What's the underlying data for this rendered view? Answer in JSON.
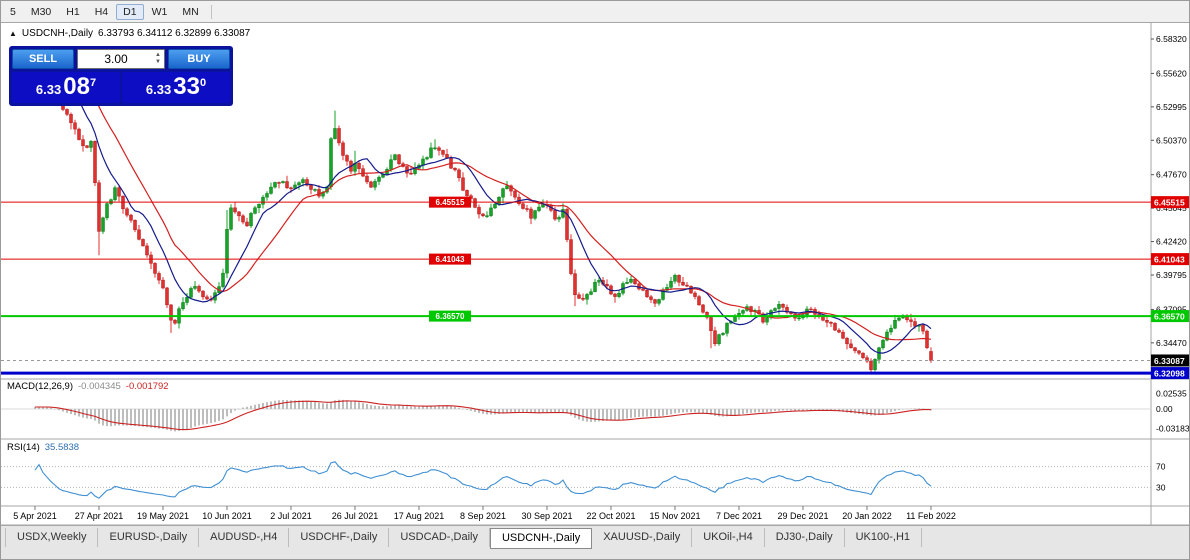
{
  "toolbar": {
    "timeframes": [
      "5",
      "M30",
      "H1",
      "H4",
      "D1",
      "W1",
      "MN"
    ]
  },
  "icons": {
    "collapse": "▲",
    "spin_up": "▲",
    "spin_down": "▼"
  },
  "chart_header": {
    "symbol_title": "USDCNH-,Daily",
    "ohlc_text": "6.33793 6.34112 6.32899 6.33087"
  },
  "trade_panel": {
    "sell_label": "SELL",
    "buy_label": "BUY",
    "volume": "3.00",
    "sell_price_base": "6.33",
    "sell_price_big": "08",
    "sell_price_sup": "7",
    "buy_price_base": "6.33",
    "buy_price_big": "33",
    "buy_price_sup": "0"
  },
  "indicator_labels": {
    "macd_name": "MACD(12,26,9)",
    "macd_main": "-0.004345",
    "macd_signal": "-0.001792",
    "rsi_name": "RSI(14)",
    "rsi_value": "35.5838"
  },
  "tabs": [
    "USDX,Weekly",
    "EURUSD-,Daily",
    "AUDUSD-,H4",
    "USDCHF-,Daily",
    "USDCAD-,Daily",
    "USDCNH-,Daily",
    "XAUUSD-,Daily",
    "UKOil-,H4",
    "DJ30-,Daily",
    "UK100-,H1"
  ],
  "chart_data": {
    "type": "candlestick",
    "symbol": "USDCNH-",
    "timeframe": "Daily",
    "ohlc_current": {
      "open": 6.33793,
      "high": 6.34112,
      "low": 6.32899,
      "close": 6.33087
    },
    "price_axis_ticks": [
      "6.58320",
      "6.55620",
      "6.52995",
      "6.50370",
      "6.47670",
      "6.45045",
      "6.42420",
      "6.39795",
      "6.37095",
      "6.34470"
    ],
    "date_labels": [
      "5 Apr 2021",
      "27 Apr 2021",
      "19 May 2021",
      "10 Jun 2021",
      "2 Jul 2021",
      "26 Jul 2021",
      "17 Aug 2021",
      "8 Sep 2021",
      "30 Sep 2021",
      "22 Oct 2021",
      "15 Nov 2021",
      "7 Dec 2021",
      "29 Dec 2021",
      "20 Jan 2022",
      "11 Feb 2022"
    ],
    "bars_per_label": 16,
    "levels": [
      {
        "price": 6.45515,
        "label": "6.45515",
        "color": "#e00000",
        "width": 1,
        "mid_label": true
      },
      {
        "price": 6.41043,
        "label": "6.41043",
        "color": "#e00000",
        "width": 1,
        "mid_label": true
      },
      {
        "price": 6.3657,
        "label": "6.36570",
        "color": "#00c800",
        "width": 2,
        "mid_label": true
      },
      {
        "price": 6.33087,
        "label": "6.33087",
        "color": "#000000",
        "width": 1,
        "style": "current"
      },
      {
        "price": 6.32098,
        "label": "6.32098",
        "color": "#0000cc",
        "width": 3
      }
    ],
    "price_keypoints": [
      [
        0,
        6.568
      ],
      [
        1,
        6.574
      ],
      [
        3,
        6.56
      ],
      [
        5,
        6.545
      ],
      [
        7,
        6.53
      ],
      [
        9,
        6.516
      ],
      [
        11,
        6.504
      ],
      [
        13,
        6.496
      ],
      [
        14,
        6.503
      ],
      [
        15,
        6.47
      ],
      [
        16,
        6.432
      ],
      [
        17,
        6.445
      ],
      [
        19,
        6.458
      ],
      [
        20,
        6.464
      ],
      [
        22,
        6.452
      ],
      [
        24,
        6.441
      ],
      [
        26,
        6.428
      ],
      [
        28,
        6.414
      ],
      [
        30,
        6.4
      ],
      [
        32,
        6.386
      ],
      [
        34,
        6.363
      ],
      [
        35,
        6.359
      ],
      [
        36,
        6.371
      ],
      [
        38,
        6.383
      ],
      [
        40,
        6.391
      ],
      [
        42,
        6.383
      ],
      [
        44,
        6.376
      ],
      [
        46,
        6.388
      ],
      [
        47,
        6.401
      ],
      [
        48,
        6.432
      ],
      [
        49,
        6.452
      ],
      [
        51,
        6.444
      ],
      [
        53,
        6.438
      ],
      [
        55,
        6.45
      ],
      [
        57,
        6.459
      ],
      [
        59,
        6.466
      ],
      [
        61,
        6.472
      ],
      [
        63,
        6.466
      ],
      [
        65,
        6.469
      ],
      [
        67,
        6.474
      ],
      [
        69,
        6.467
      ],
      [
        71,
        6.461
      ],
      [
        73,
        6.468
      ],
      [
        74,
        6.503
      ],
      [
        75,
        6.511
      ],
      [
        77,
        6.493
      ],
      [
        79,
        6.481
      ],
      [
        80,
        6.487
      ],
      [
        82,
        6.476
      ],
      [
        84,
        6.468
      ],
      [
        86,
        6.475
      ],
      [
        88,
        6.483
      ],
      [
        90,
        6.49
      ],
      [
        92,
        6.482
      ],
      [
        94,
        6.476
      ],
      [
        96,
        6.484
      ],
      [
        98,
        6.492
      ],
      [
        100,
        6.499
      ],
      [
        102,
        6.494
      ],
      [
        104,
        6.484
      ],
      [
        106,
        6.472
      ],
      [
        108,
        6.461
      ],
      [
        110,
        6.451
      ],
      [
        112,
        6.442
      ],
      [
        114,
        6.451
      ],
      [
        116,
        6.461
      ],
      [
        118,
        6.467
      ],
      [
        120,
        6.459
      ],
      [
        122,
        6.451
      ],
      [
        124,
        6.444
      ],
      [
        126,
        6.453
      ],
      [
        128,
        6.451
      ],
      [
        130,
        6.442
      ],
      [
        132,
        6.447
      ],
      [
        133,
        6.428
      ],
      [
        134,
        6.398
      ],
      [
        135,
        6.383
      ],
      [
        137,
        6.377
      ],
      [
        139,
        6.387
      ],
      [
        141,
        6.395
      ],
      [
        143,
        6.387
      ],
      [
        145,
        6.381
      ],
      [
        147,
        6.39
      ],
      [
        149,
        6.397
      ],
      [
        151,
        6.389
      ],
      [
        153,
        6.381
      ],
      [
        155,
        6.375
      ],
      [
        157,
        6.384
      ],
      [
        159,
        6.392
      ],
      [
        160,
        6.396
      ],
      [
        162,
        6.392
      ],
      [
        164,
        6.384
      ],
      [
        166,
        6.376
      ],
      [
        168,
        6.366
      ],
      [
        169,
        6.352
      ],
      [
        170,
        6.345
      ],
      [
        172,
        6.354
      ],
      [
        174,
        6.362
      ],
      [
        176,
        6.369
      ],
      [
        178,
        6.375
      ],
      [
        180,
        6.368
      ],
      [
        182,
        6.362
      ],
      [
        184,
        6.369
      ],
      [
        186,
        6.375
      ],
      [
        188,
        6.369
      ],
      [
        190,
        6.363
      ],
      [
        192,
        6.368
      ],
      [
        194,
        6.372
      ],
      [
        196,
        6.367
      ],
      [
        198,
        6.361
      ],
      [
        200,
        6.355
      ],
      [
        202,
        6.349
      ],
      [
        204,
        6.342
      ],
      [
        206,
        6.335
      ],
      [
        208,
        6.329
      ],
      [
        209,
        6.324
      ],
      [
        210,
        6.333
      ],
      [
        211,
        6.343
      ],
      [
        213,
        6.353
      ],
      [
        215,
        6.361
      ],
      [
        217,
        6.365
      ],
      [
        219,
        6.362
      ],
      [
        221,
        6.358
      ],
      [
        222,
        6.352
      ],
      [
        223,
        6.342
      ],
      [
        224,
        6.33087
      ]
    ],
    "spike_highs": [
      [
        48,
        6.449
      ],
      [
        75,
        6.527
      ],
      [
        80,
        6.4955
      ],
      [
        100,
        6.5045
      ]
    ],
    "spike_lows": [
      [
        16,
        6.4135
      ],
      [
        34,
        6.3525
      ],
      [
        135,
        6.3735
      ],
      [
        169,
        6.3405
      ],
      [
        209,
        6.3212
      ]
    ],
    "indicators": {
      "ma_fast": {
        "type": "SMA",
        "period": 10,
        "color": "#151b8d"
      },
      "ma_slow": {
        "type": "SMA",
        "period": 20,
        "color": "#d42020"
      },
      "macd": {
        "fast": 12,
        "slow": 26,
        "signal": 9,
        "main_value": -0.004345,
        "signal_value": -0.001792,
        "axis_labels": [
          "0.02535",
          "0.00",
          "-0.03183"
        ],
        "hist_color": "#bdbdbd",
        "signal_color": "#cc2222"
      },
      "rsi": {
        "period": 14,
        "value": 35.5838,
        "levels": [
          70,
          30
        ],
        "axis_labels": [
          "70",
          "30"
        ],
        "color": "#3f8fd2"
      }
    }
  }
}
